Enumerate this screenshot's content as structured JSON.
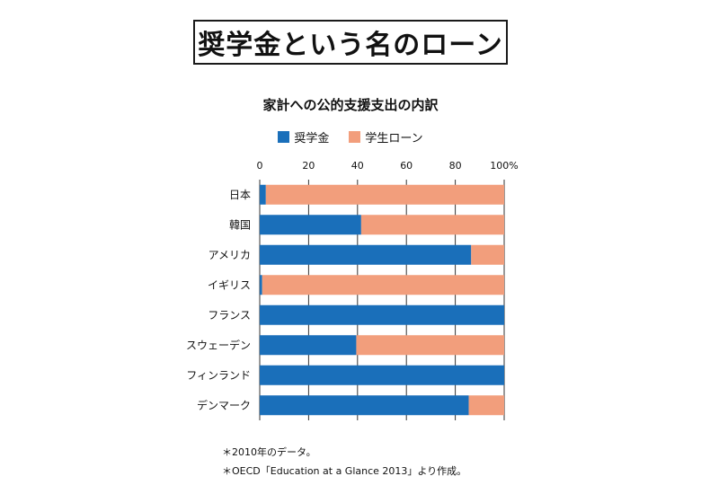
{
  "header": {
    "title": "奨学金という名のローン"
  },
  "chart_data": {
    "type": "bar",
    "orientation": "horizontal",
    "stacked": true,
    "title": "家計への公的支援支出の内訳",
    "categories": [
      "日本",
      "韓国",
      "アメリカ",
      "イギリス",
      "フランス",
      "スウェーデン",
      "フィンランド",
      "デンマーク"
    ],
    "series": [
      {
        "name": "奨学金",
        "color": "#1a6fba",
        "values": [
          2.5,
          41.5,
          86.5,
          1,
          100,
          39.5,
          100,
          85.5
        ]
      },
      {
        "name": "学生ローン",
        "color": "#f29e7c",
        "values": [
          97.5,
          58.5,
          13.5,
          99,
          0,
          60.5,
          0,
          14.5
        ]
      }
    ],
    "xlim": [
      0,
      100
    ],
    "xticks": [
      "0",
      "20",
      "40",
      "60",
      "80",
      "100%"
    ],
    "legend_position": "top",
    "grid": true
  },
  "footnotes": [
    "＊2010年のデータ。",
    "＊OECD「Education at a Glance 2013」より作成。"
  ]
}
